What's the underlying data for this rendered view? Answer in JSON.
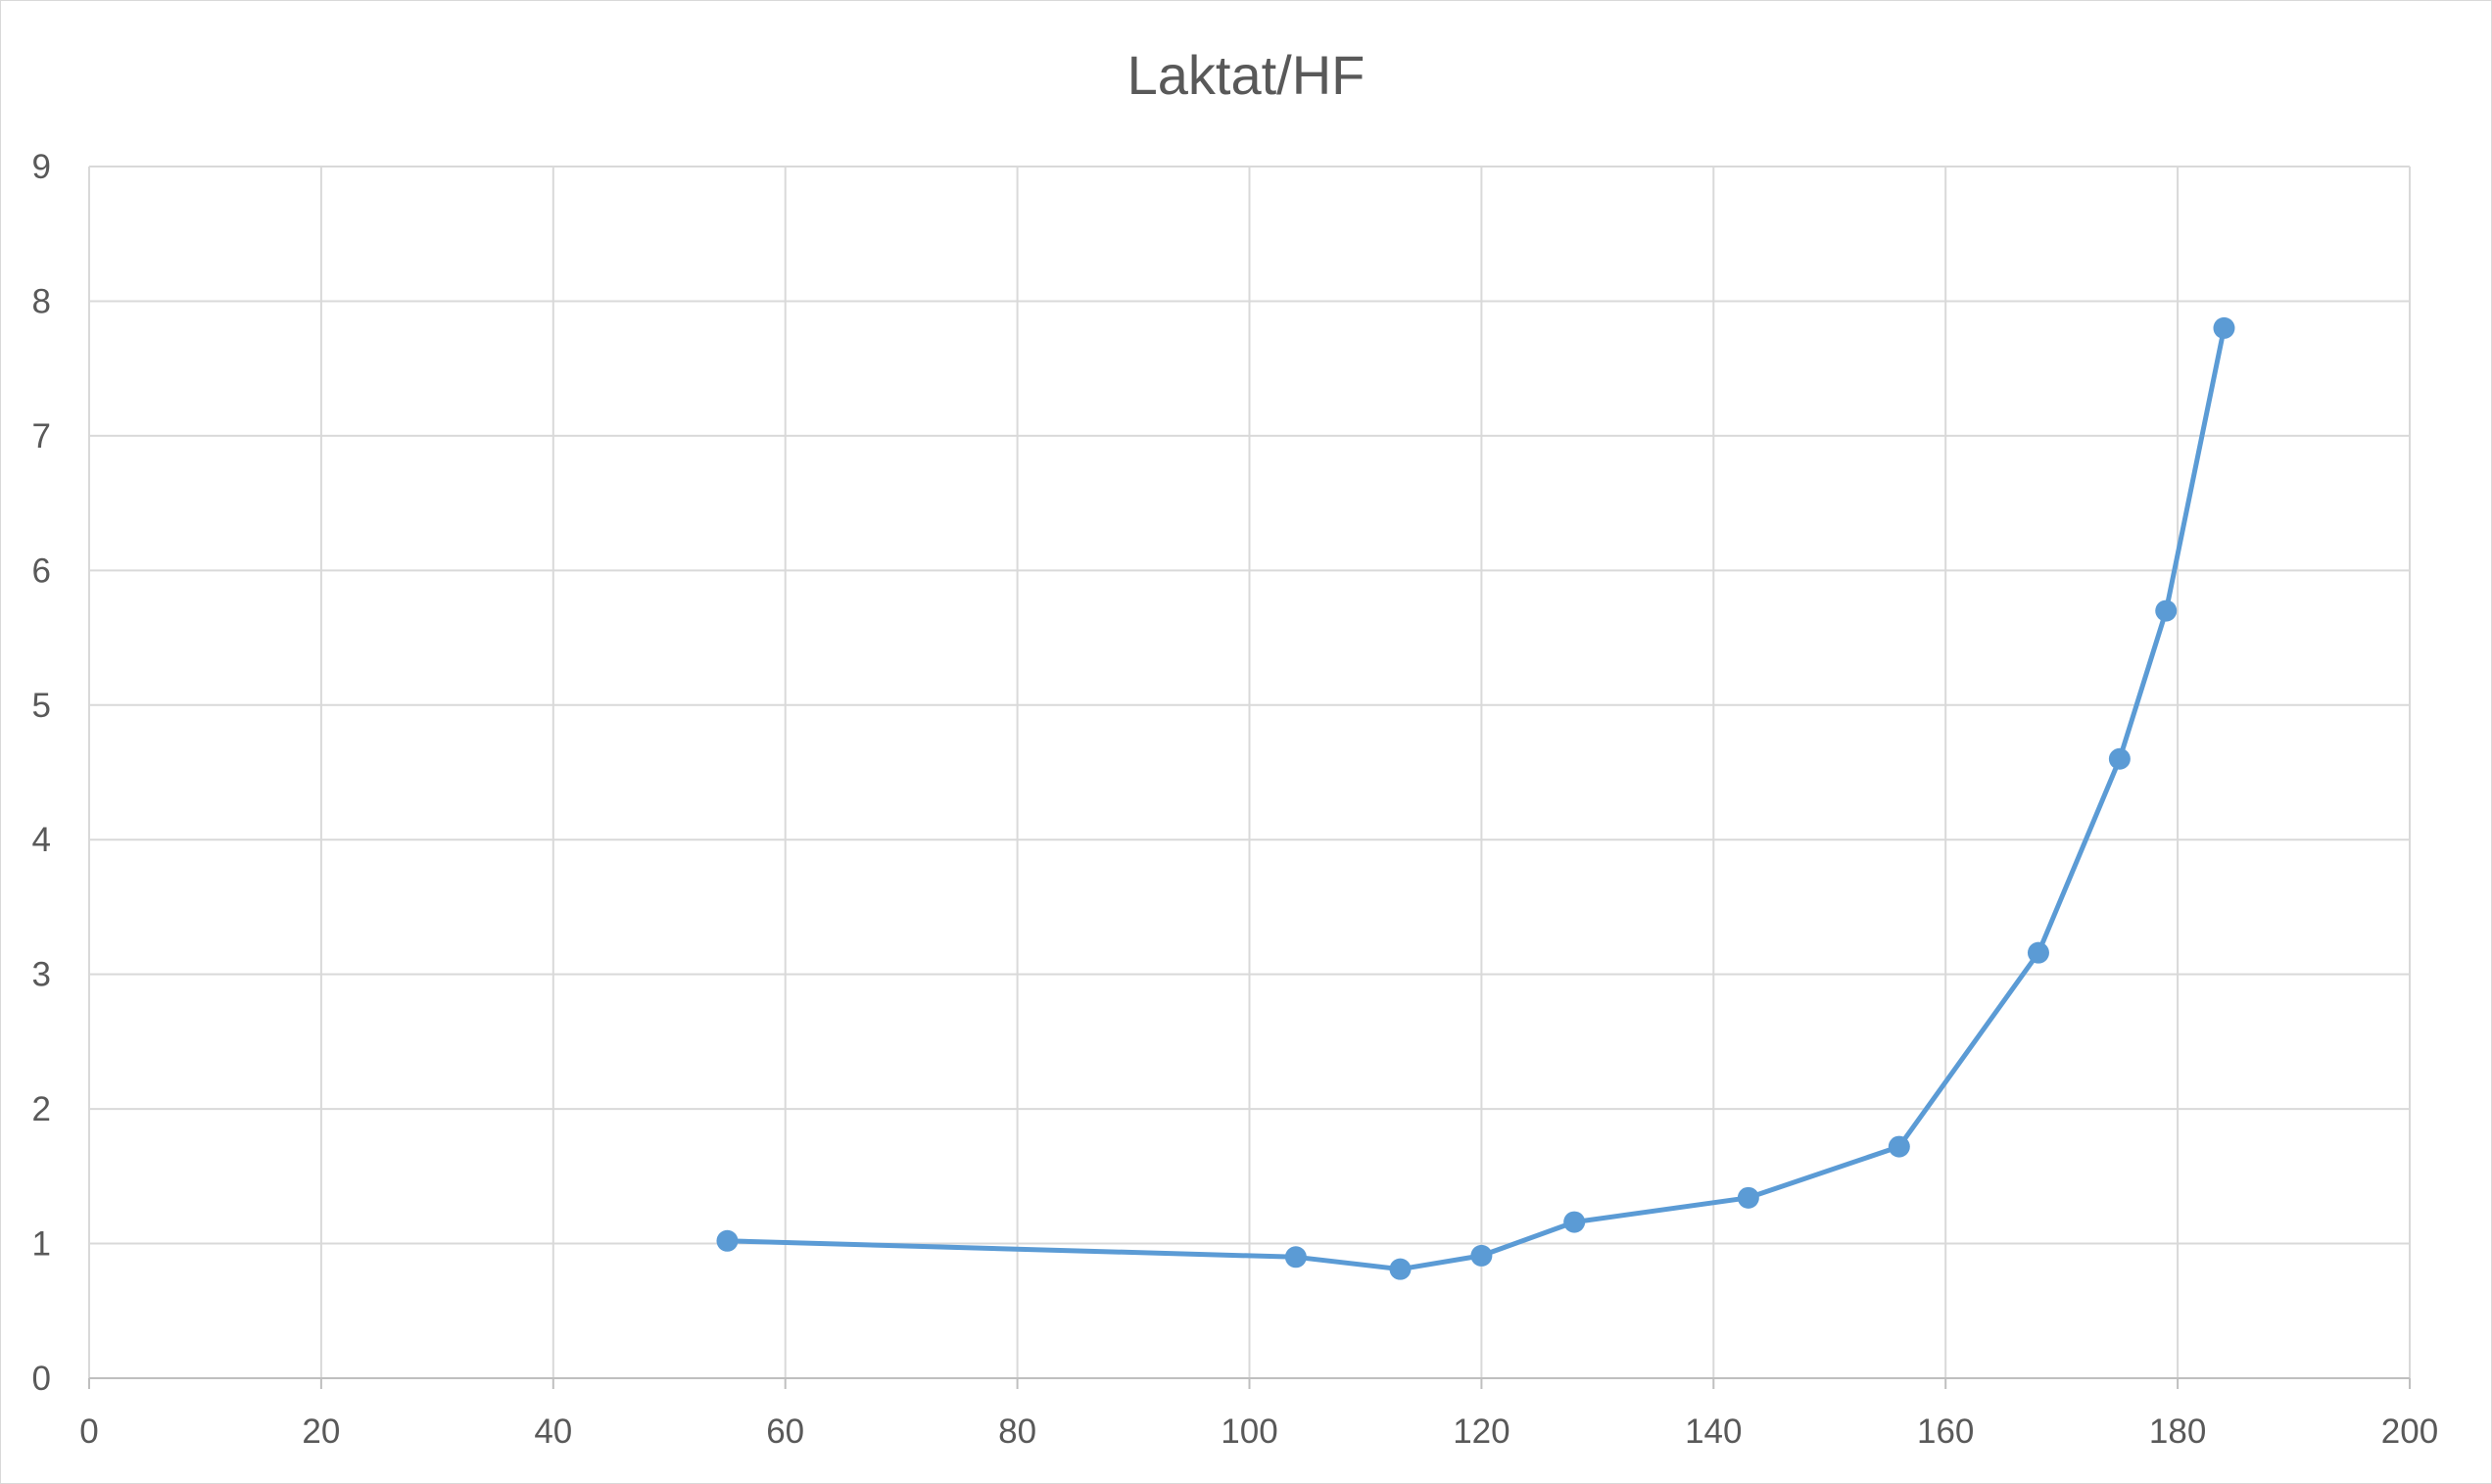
{
  "chart_data": {
    "type": "scatter",
    "title": "Laktat/HF",
    "xlabel": "",
    "ylabel": "",
    "xlim": [
      0,
      200
    ],
    "ylim": [
      0,
      9
    ],
    "xticks": [
      0,
      20,
      40,
      60,
      80,
      100,
      120,
      140,
      160,
      180,
      200
    ],
    "yticks": [
      0,
      1,
      2,
      3,
      4,
      5,
      6,
      7,
      8,
      9
    ],
    "grid": true,
    "legend": "none",
    "series": [
      {
        "x": [
          55,
          104,
          113,
          120,
          128,
          143,
          156,
          168,
          175,
          179,
          184
        ],
        "y": [
          1.02,
          0.9,
          0.81,
          0.91,
          1.16,
          1.34,
          1.72,
          3.16,
          4.6,
          5.7,
          7.8
        ],
        "color": "#5b9bd5",
        "lines": true,
        "markers": true
      }
    ]
  }
}
